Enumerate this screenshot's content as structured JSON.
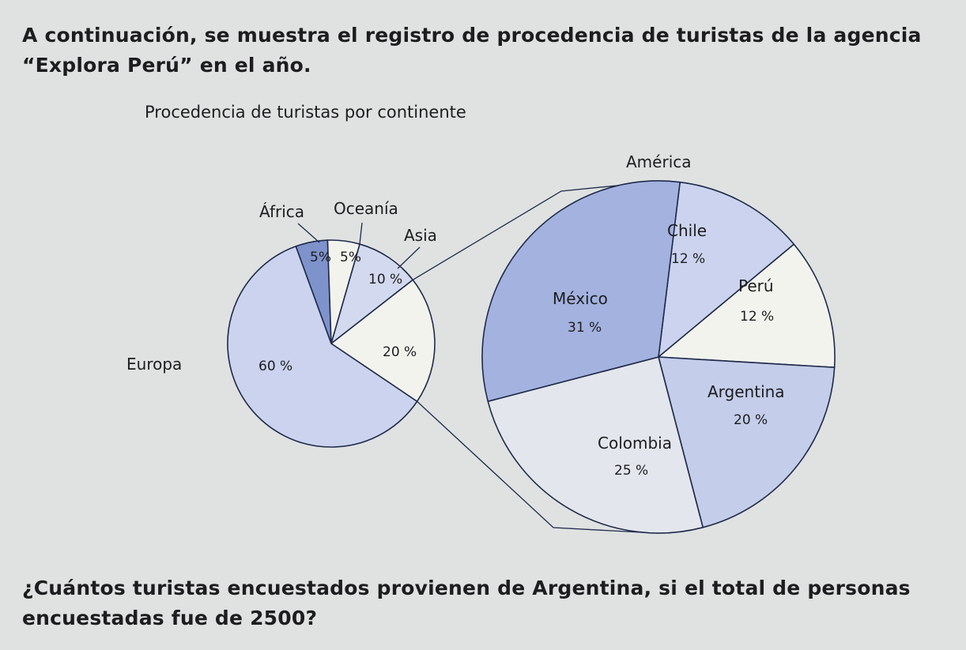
{
  "text": {
    "intro": "A continuación, se muestra el registro de procedencia de turistas de la agencia “Explora Perú” en el año.",
    "question": "¿Cuántos turistas encuestados provienen de Argentina, si el total de personas encuestadas fue de 2500?"
  },
  "colors": {
    "outline": "#1e2a4a",
    "blue_dark": "#7e93cc",
    "blue_mid": "#b8c3e6",
    "blue_light": "#d0d7ef",
    "pale_grey": "#e3e6ec",
    "off_white": "#f3f3ee"
  },
  "chart_data": [
    {
      "type": "pie",
      "title": "Procedencia de turistas por continente",
      "slices": [
        {
          "label": "África",
          "value": 5,
          "value_label": "5%",
          "color": "#7e93cc"
        },
        {
          "label": "Oceanía",
          "value": 5,
          "value_label": "5%",
          "color": "#f3f3ee"
        },
        {
          "label": "Asia",
          "value": 10,
          "value_label": "10 %",
          "color": "#d3d9ef"
        },
        {
          "label": "América",
          "value": 20,
          "value_label": "20 %",
          "color": "#f3f3ee"
        },
        {
          "label": "Europa",
          "value": 60,
          "value_label": "60 %",
          "color": "#cbd3ee"
        }
      ]
    },
    {
      "type": "pie",
      "title": "América",
      "slices": [
        {
          "label": "Chile",
          "value": 12,
          "value_label": "12 %",
          "color": "#cbd3ee"
        },
        {
          "label": "Perú",
          "value": 12,
          "value_label": "12 %",
          "color": "#f3f3ee"
        },
        {
          "label": "Argentina",
          "value": 20,
          "value_label": "20 %",
          "color": "#c4cdea"
        },
        {
          "label": "Colombia",
          "value": 25,
          "value_label": "25 %",
          "color": "#e3e6ec"
        },
        {
          "label": "México",
          "value": 31,
          "value_label": "31 %",
          "color": "#a3b2df"
        }
      ]
    }
  ]
}
